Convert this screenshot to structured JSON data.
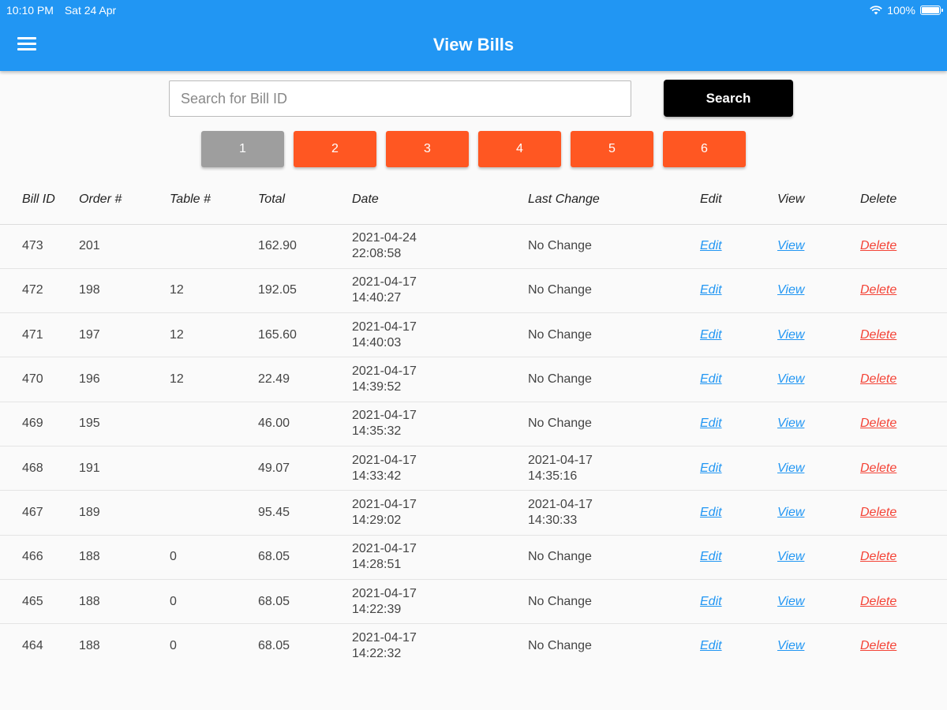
{
  "status": {
    "time": "10:10 PM",
    "date": "Sat 24 Apr",
    "battery": "100%"
  },
  "header": {
    "title": "View Bills",
    "menu_icon": "menu-icon"
  },
  "search": {
    "placeholder": "Search for Bill ID",
    "value": "",
    "button_label": "Search"
  },
  "pagination": {
    "pages": [
      "1",
      "2",
      "3",
      "4",
      "5",
      "6"
    ],
    "active": "1"
  },
  "table": {
    "columns": [
      "Bill ID",
      "Order #",
      "Table #",
      "Total",
      "Date",
      "Last Change",
      "Edit",
      "View",
      "Delete"
    ],
    "action_labels": {
      "edit": "Edit",
      "view": "View",
      "delete": "Delete"
    },
    "rows": [
      {
        "bill_id": "473",
        "order": "201",
        "table": "",
        "total": "162.90",
        "date": "2021-04-24",
        "time": "22:08:58",
        "last_change": "No Change",
        "last_change_time": ""
      },
      {
        "bill_id": "472",
        "order": "198",
        "table": "12",
        "total": "192.05",
        "date": "2021-04-17",
        "time": "14:40:27",
        "last_change": "No Change",
        "last_change_time": ""
      },
      {
        "bill_id": "471",
        "order": "197",
        "table": "12",
        "total": "165.60",
        "date": "2021-04-17",
        "time": "14:40:03",
        "last_change": "No Change",
        "last_change_time": ""
      },
      {
        "bill_id": "470",
        "order": "196",
        "table": "12",
        "total": "22.49",
        "date": "2021-04-17",
        "time": "14:39:52",
        "last_change": "No Change",
        "last_change_time": ""
      },
      {
        "bill_id": "469",
        "order": "195",
        "table": "",
        "total": "46.00",
        "date": "2021-04-17",
        "time": "14:35:32",
        "last_change": "No Change",
        "last_change_time": ""
      },
      {
        "bill_id": "468",
        "order": "191",
        "table": "",
        "total": "49.07",
        "date": "2021-04-17",
        "time": "14:33:42",
        "last_change": "2021-04-17",
        "last_change_time": "14:35:16"
      },
      {
        "bill_id": "467",
        "order": "189",
        "table": "",
        "total": "95.45",
        "date": "2021-04-17",
        "time": "14:29:02",
        "last_change": "2021-04-17",
        "last_change_time": "14:30:33"
      },
      {
        "bill_id": "466",
        "order": "188",
        "table": "0",
        "total": "68.05",
        "date": "2021-04-17",
        "time": "14:28:51",
        "last_change": "No Change",
        "last_change_time": ""
      },
      {
        "bill_id": "465",
        "order": "188",
        "table": "0",
        "total": "68.05",
        "date": "2021-04-17",
        "time": "14:22:39",
        "last_change": "No Change",
        "last_change_time": ""
      },
      {
        "bill_id": "464",
        "order": "188",
        "table": "0",
        "total": "68.05",
        "date": "2021-04-17",
        "time": "14:22:32",
        "last_change": "No Change",
        "last_change_time": ""
      }
    ]
  },
  "colors": {
    "appbar": "#2196f3",
    "page_active": "#9e9e9e",
    "page": "#ff5722",
    "link": "#2196f3",
    "delete": "#f44336"
  }
}
